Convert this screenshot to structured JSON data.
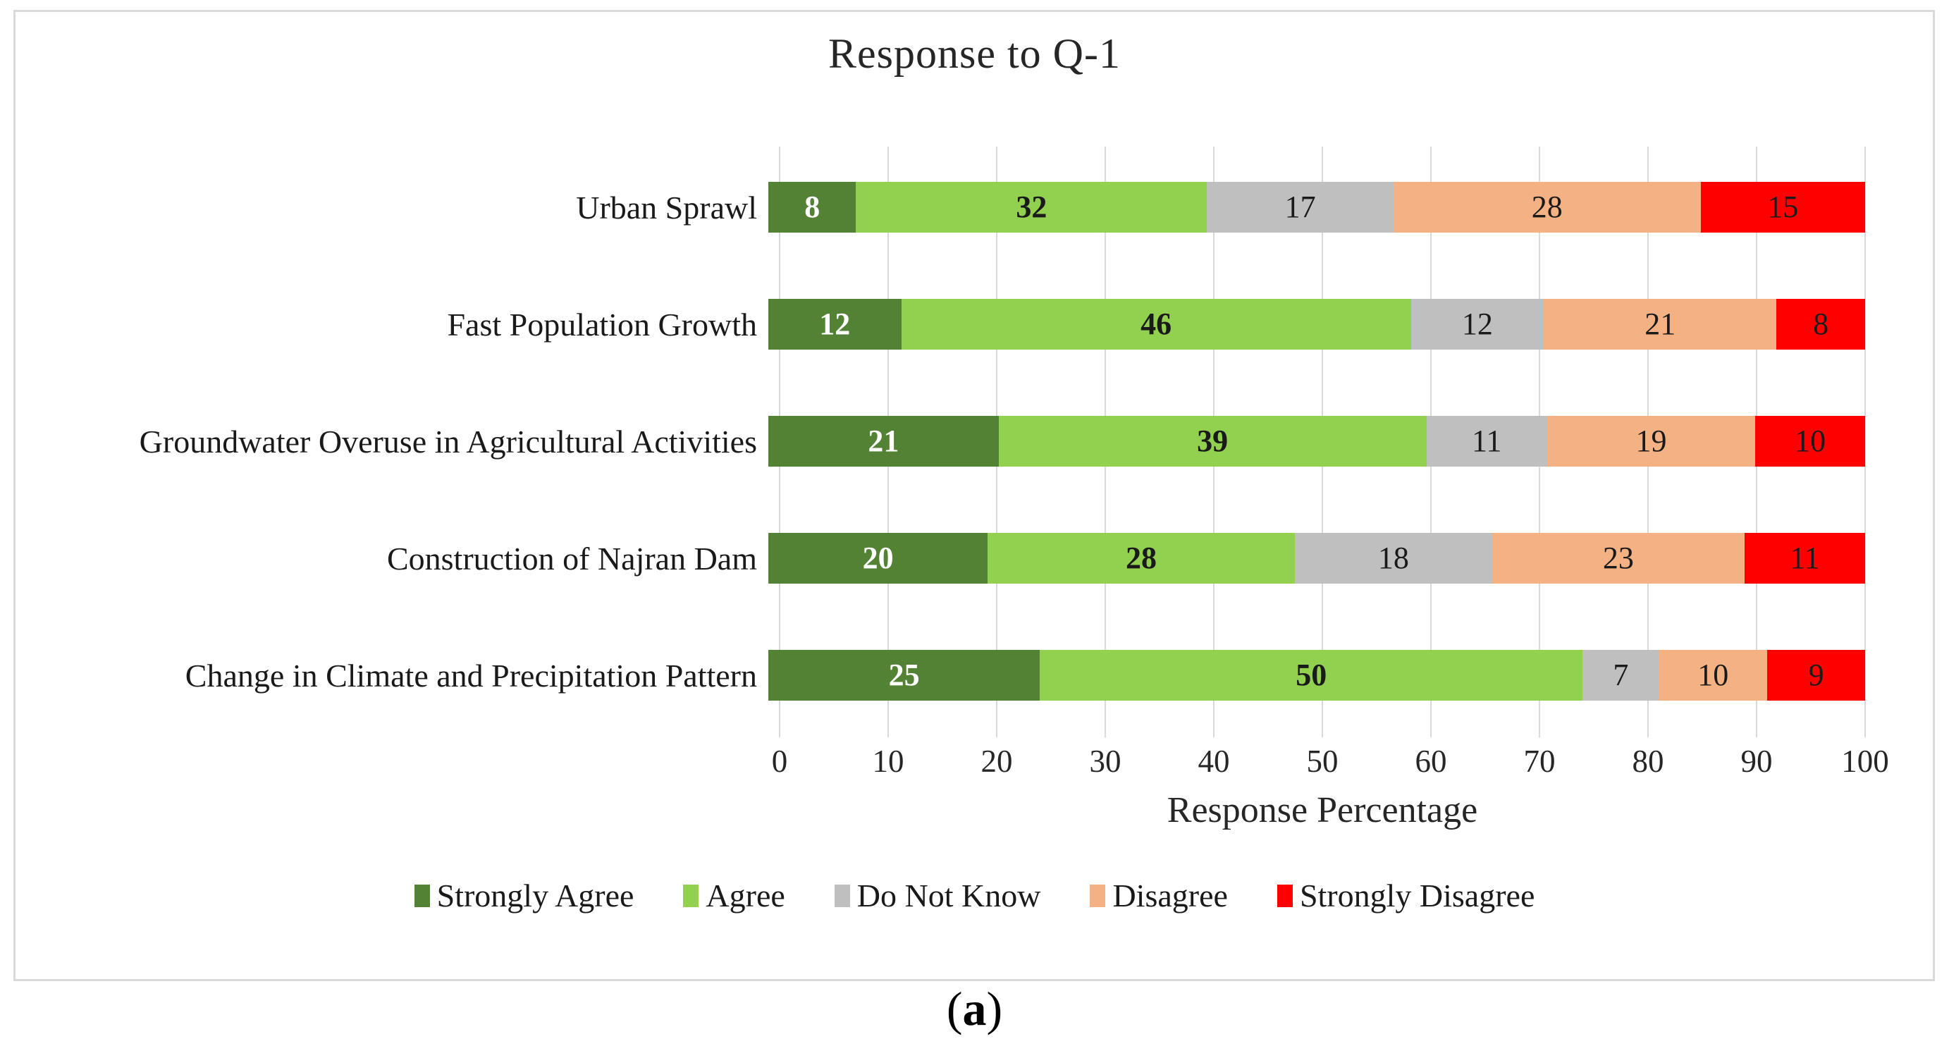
{
  "figure": {
    "caption": {
      "open": "(",
      "letter": "a",
      "close": ")"
    }
  },
  "chart_data": {
    "type": "bar",
    "orientation": "horizontal",
    "stacked": true,
    "normalized_to_full_width": true,
    "title": "Response to Q-1",
    "xlabel": "Response Percentage",
    "ylabel": "",
    "xlim": [
      0,
      100
    ],
    "xticks": [
      0,
      10,
      20,
      30,
      40,
      50,
      60,
      70,
      80,
      90,
      100
    ],
    "grid": "vertical",
    "gridline_color": "#d9d9d9",
    "legend_position": "bottom",
    "categories": [
      "Urban Sprawl",
      "Fast Population Growth",
      "Groundwater Overuse in Agricultural Activities",
      "Construction of Najran Dam",
      "Change in Climate and Precipitation Pattern"
    ],
    "series": [
      {
        "name": "Strongly Agree",
        "color": "#548235",
        "label_color": "#ffffff",
        "label_bold": true,
        "values": [
          8,
          12,
          21,
          20,
          25
        ]
      },
      {
        "name": "Agree",
        "color": "#92d050",
        "label_color": "#1a1a1a",
        "label_bold": true,
        "values": [
          32,
          46,
          39,
          28,
          50
        ]
      },
      {
        "name": "Do Not Know",
        "color": "#bfbfbf",
        "label_color": "#1a1a1a",
        "label_bold": false,
        "values": [
          17,
          12,
          11,
          18,
          7
        ]
      },
      {
        "name": "Disagree",
        "color": "#f4b183",
        "label_color": "#1a1a1a",
        "label_bold": false,
        "values": [
          28,
          21,
          19,
          23,
          10
        ]
      },
      {
        "name": "Strongly Disagree",
        "color": "#ff0000",
        "label_color": "#1a1a1a",
        "label_bold": false,
        "values": [
          15,
          8,
          10,
          11,
          9
        ]
      }
    ]
  }
}
